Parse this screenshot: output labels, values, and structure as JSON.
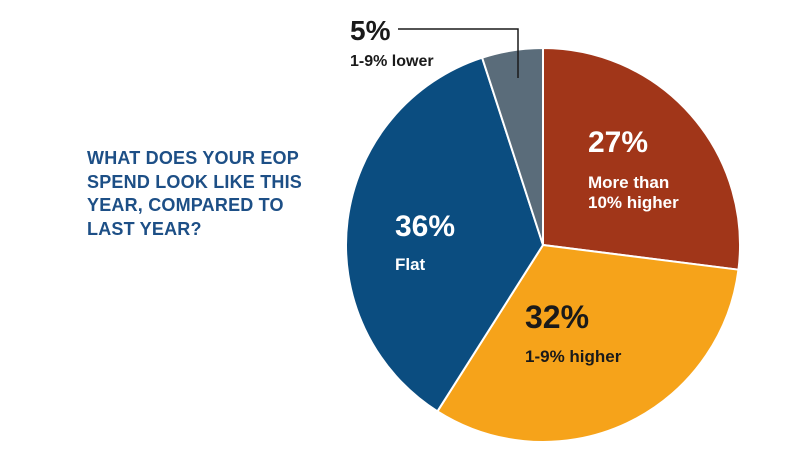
{
  "question_lines": [
    "WHAT DOES YOUR EOP",
    "SPEND LOOK LIKE THIS",
    "YEAR, COMPARED TO",
    "LAST YEAR?"
  ],
  "colors": {
    "title": "#1d4f86",
    "more_than_10_higher": "#a13619",
    "1_9_higher": "#f6a31a",
    "flat": "#0b4d80",
    "1_9_lower": "#5a6c7a"
  },
  "chart_data": {
    "type": "pie",
    "title": "",
    "slices": [
      {
        "label_lines": [
          "More than",
          "10% higher"
        ],
        "pct_label": "27%",
        "value": 27,
        "color": "#a13619"
      },
      {
        "label_lines": [
          "1-9% higher"
        ],
        "pct_label": "32%",
        "value": 32,
        "color": "#f6a31a"
      },
      {
        "label_lines": [
          "Flat"
        ],
        "pct_label": "36%",
        "value": 36,
        "color": "#0b4d80"
      },
      {
        "label_lines": [
          "1-9% lower"
        ],
        "pct_label": "5%",
        "value": 5,
        "color": "#5a6c7a"
      }
    ],
    "start": "12 o'clock",
    "direction": "clockwise"
  }
}
